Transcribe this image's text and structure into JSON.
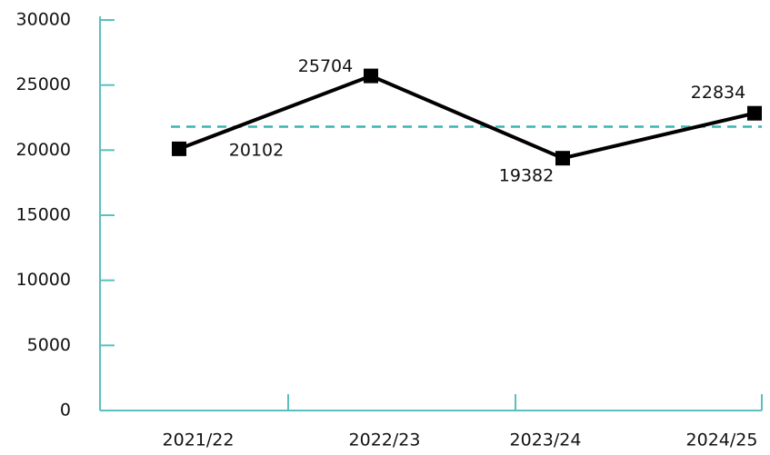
{
  "chart_data": {
    "type": "line",
    "categories": [
      "2021/22",
      "2022/23",
      "2023/24",
      "2024/25"
    ],
    "series": [
      {
        "name": null,
        "color": "#000000",
        "values": [
          20102,
          25704,
          19382,
          22834
        ]
      }
    ],
    "ylim": [
      0,
      30000
    ],
    "yticks": [
      0,
      5000,
      10000,
      15000,
      20000,
      25000,
      30000
    ],
    "axis_color": "#5bbfbf",
    "reference_line": {
      "value": 21800,
      "color": "#3ab5b0",
      "dashed": true
    }
  }
}
